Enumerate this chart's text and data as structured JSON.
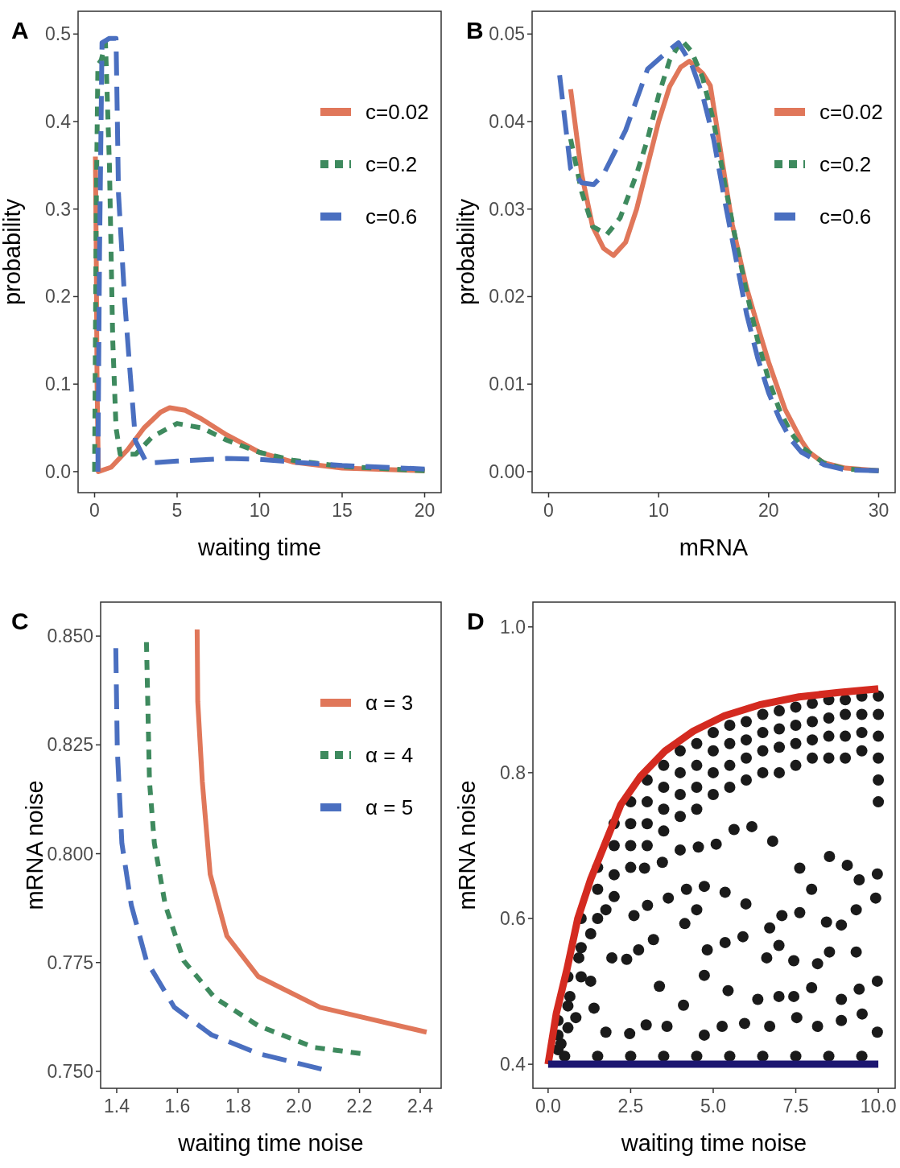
{
  "chart_data": [
    {
      "type": "line",
      "title": "A",
      "xlabel": "waiting time",
      "ylabel": "probability",
      "xlim": [
        -1,
        21
      ],
      "ylim": [
        -0.024,
        0.526
      ],
      "xticks": [
        0,
        5,
        10,
        15,
        20
      ],
      "yticks": [
        {
          "value": 0,
          "label": "0.0"
        },
        0.1,
        0.2,
        0.3,
        0.4,
        0.5
      ],
      "legend": "top right",
      "series": [
        {
          "name": "c=0.02",
          "color": "#e0775a",
          "line_style": "solid",
          "x": [
            0.05,
            0.1,
            0.15,
            0.23,
            1,
            2,
            3,
            4,
            4.55,
            5.5,
            6.5,
            8,
            10,
            12,
            15,
            20
          ],
          "values": [
            0.36,
            0.25,
            0.1,
            0.0,
            0.005,
            0.025,
            0.05,
            0.068,
            0.073,
            0.07,
            0.06,
            0.042,
            0.022,
            0.011,
            0.004,
            0.001
          ]
        },
        {
          "name": "c=0.2",
          "color": "#3e8a5e",
          "line_style": "dotted",
          "x": [
            0,
            0.1,
            0.2,
            0.4,
            0.66,
            0.9,
            1.1,
            1.3,
            1.55,
            2.5,
            3.5,
            5,
            6.5,
            8,
            10,
            12,
            15,
            20
          ],
          "values": [
            0,
            0.3,
            0.465,
            0.47,
            0.49,
            0.35,
            0.15,
            0.05,
            0.02,
            0.02,
            0.04,
            0.055,
            0.05,
            0.036,
            0.022,
            0.013,
            0.006,
            0.001
          ]
        },
        {
          "name": "c=0.6",
          "color": "#4a6fc0",
          "line_style": "dashed",
          "x": [
            0.2,
            0.3,
            0.45,
            0.9,
            1.3,
            1.45,
            1.83,
            2.11,
            2.48,
            3.1,
            3.5,
            5,
            8,
            10,
            12,
            15,
            20
          ],
          "values": [
            0,
            0.25,
            0.49,
            0.495,
            0.495,
            0.317,
            0.194,
            0.123,
            0.035,
            0.012,
            0.01,
            0.012,
            0.015,
            0.014,
            0.011,
            0.007,
            0.003
          ]
        }
      ]
    },
    {
      "type": "line",
      "title": "B",
      "xlabel": "mRNA",
      "ylabel": "probability",
      "xlim": [
        -1.5,
        31.5
      ],
      "ylim": [
        -0.0024,
        0.0526
      ],
      "xticks": [
        0,
        10,
        20,
        30
      ],
      "yticks": [
        {
          "value": 0,
          "label": "0.00"
        },
        {
          "value": 0.01,
          "label": "0.01"
        },
        {
          "value": 0.02,
          "label": "0.02"
        },
        {
          "value": 0.03,
          "label": "0.03"
        },
        {
          "value": 0.04,
          "label": "0.04"
        },
        {
          "value": 0.05,
          "label": "0.05"
        }
      ],
      "legend": "top right",
      "series": [
        {
          "name": "c=0.02",
          "color": "#e0775a",
          "line_style": "solid",
          "x": [
            2,
            3,
            4,
            5,
            5.9,
            7,
            8,
            9,
            10,
            11,
            12,
            12.8,
            14,
            14.7,
            16,
            16.7,
            18,
            19.2,
            20,
            21.5,
            23,
            23.7,
            25,
            27,
            30
          ],
          "values": [
            0.0437,
            0.034,
            0.028,
            0.0255,
            0.0247,
            0.0262,
            0.03,
            0.035,
            0.04,
            0.044,
            0.0462,
            0.0469,
            0.0455,
            0.0441,
            0.0337,
            0.0282,
            0.021,
            0.0158,
            0.0125,
            0.0071,
            0.0035,
            0.0022,
            0.001,
            0.0004,
            0.0001
          ]
        },
        {
          "name": "c=0.2",
          "color": "#3e8a5e",
          "line_style": "dotted",
          "x": [
            2,
            3,
            4,
            5.3,
            6.5,
            8,
            9,
            10,
            11,
            12.1,
            13,
            14,
            15,
            16,
            17,
            18,
            19,
            20,
            21,
            22,
            23,
            25,
            27,
            30
          ],
          "values": [
            0.038,
            0.032,
            0.028,
            0.0271,
            0.029,
            0.034,
            0.038,
            0.043,
            0.047,
            0.0493,
            0.048,
            0.045,
            0.04,
            0.033,
            0.0265,
            0.0205,
            0.015,
            0.0105,
            0.007,
            0.0045,
            0.0028,
            0.001,
            0.0003,
            0.0001
          ]
        },
        {
          "name": "c=0.6",
          "color": "#4a6fc0",
          "line_style": "dashed",
          "x": [
            1,
            2,
            3,
            4.1,
            5,
            6,
            7,
            8,
            9,
            10.8,
            11.8,
            13,
            14,
            15,
            16,
            17,
            18,
            19,
            20,
            21,
            22,
            23,
            25,
            27,
            30
          ],
          "values": [
            0.0453,
            0.0346,
            0.033,
            0.0328,
            0.034,
            0.0365,
            0.039,
            0.0425,
            0.046,
            0.048,
            0.049,
            0.0465,
            0.043,
            0.038,
            0.031,
            0.0245,
            0.018,
            0.013,
            0.009,
            0.006,
            0.0037,
            0.0022,
            0.0008,
            0.0002,
            0.0001
          ]
        }
      ]
    },
    {
      "type": "line",
      "title": "C",
      "xlabel": "waiting time noise",
      "ylabel": "mRNA noise",
      "xlim": [
        1.347,
        2.469
      ],
      "ylim": [
        0.7461,
        0.8578
      ],
      "xticks": [
        1.4,
        1.6,
        1.8,
        {
          "value": 2,
          "label": "2.0"
        },
        2.2,
        2.4
      ],
      "yticks": [
        {
          "value": 0.75,
          "label": "0.750"
        },
        {
          "value": 0.775,
          "label": "0.775"
        },
        {
          "value": 0.8,
          "label": "0.800"
        },
        {
          "value": 0.825,
          "label": "0.825"
        },
        {
          "value": 0.85,
          "label": "0.850"
        }
      ],
      "legend": "top right",
      "series": [
        {
          "name": "α = 3",
          "color": "#e0775a",
          "line_style": "solid",
          "x": [
            1.665,
            1.667,
            1.682,
            1.708,
            1.763,
            1.866,
            2.07,
            2.421
          ],
          "values": [
            0.8515,
            0.835,
            0.8166,
            0.7953,
            0.7811,
            0.7718,
            0.7647,
            0.759
          ]
        },
        {
          "name": "α = 4",
          "color": "#3e8a5e",
          "line_style": "dotted",
          "x": [
            1.498,
            1.508,
            1.524,
            1.56,
            1.621,
            1.723,
            1.866,
            2.05,
            2.203
          ],
          "values": [
            0.8486,
            0.8166,
            0.8024,
            0.7882,
            0.7754,
            0.7669,
            0.7605,
            0.7555,
            0.7541
          ]
        },
        {
          "name": "α = 5",
          "color": "#4a6fc0",
          "line_style": "dashed",
          "x": [
            1.397,
            1.402,
            1.417,
            1.448,
            1.498,
            1.59,
            1.712,
            1.866,
            2.075
          ],
          "values": [
            0.8472,
            0.8238,
            0.8024,
            0.7882,
            0.7754,
            0.7647,
            0.7584,
            0.7541,
            0.7505
          ]
        }
      ]
    },
    {
      "type": "scatter",
      "title": "D",
      "xlabel": "waiting time noise",
      "ylabel": "mRNA noise",
      "xlim": [
        -0.46,
        10.51
      ],
      "ylim": [
        0.367,
        1.034
      ],
      "xticks": [
        {
          "value": 0,
          "label": "0.0"
        },
        2.5,
        {
          "value": 5,
          "label": "5.0"
        },
        7.5,
        {
          "value": 10,
          "label": "10.0"
        }
      ],
      "yticks": [
        0.4,
        0.6,
        0.8,
        {
          "value": 1,
          "label": "1.0"
        }
      ],
      "series": [
        {
          "marker": "circle",
          "color": "#1a1a1a",
          "x": [
            0.3,
            0.3,
            0.3,
            0.6,
            0.6,
            0.6,
            1,
            1,
            1,
            1.5,
            1.5,
            1.5,
            2,
            2,
            2,
            2,
            2.5,
            2.5,
            2.5,
            2.5,
            3,
            3,
            3,
            3,
            3.5,
            3.5,
            3.5,
            3.5,
            4,
            4,
            4,
            4,
            4.5,
            4.5,
            4.5,
            4.5,
            5,
            5,
            5,
            5,
            5.5,
            5.5,
            5.5,
            5.5,
            6,
            6,
            6,
            6,
            6.5,
            6.5,
            6.5,
            6.5,
            7,
            7,
            7,
            7,
            7.5,
            7.5,
            7.5,
            7.5,
            8,
            8,
            8,
            8,
            8.5,
            8.5,
            8.5,
            8.5,
            9,
            9,
            9,
            9,
            9.5,
            9.5,
            9.5,
            9.5,
            10,
            10,
            10,
            10,
            10,
            10,
            4.14,
            4.5,
            3.37,
            1.39,
            0.84,
            1.75,
            2.47,
            2.97,
            3.6,
            4.1,
            4.73,
            5.27,
            5.95,
            6.71,
            7.53,
            8.16,
            8.88,
            9.51,
            9.97,
            9.97,
            9.42,
            8.88,
            7.98,
            7.44,
            6.99,
            6.35,
            5.45,
            4.73,
            4.82,
            5.36,
            5.9,
            6.62,
            6.99,
            7.44,
            8.16,
            8.52,
            9.33,
            2.38,
            2.74,
            3.19,
            1.93,
            1.29,
            0.66,
            0.39,
            2.6,
            3.01,
            3.64,
            4.19,
            4.73,
            5.36,
            5.99,
            6.71,
            7.08,
            7.62,
            7.98,
            8.43,
            8.88,
            9.33,
            9.92,
            9.97,
            9.42,
            9.06,
            8.52,
            7.62,
            6.8,
            6.17,
            5.63,
            5.09,
            4.55,
            4,
            3.46,
            2.92,
            1.75,
            1.29,
            0.93,
            0.5,
            1.5,
            2.5,
            3.5,
            4.5,
            5.5,
            6.5,
            7.5,
            8.5,
            9.5
          ],
          "values": [
            0.46,
            0.44,
            0.42,
            0.52,
            0.48,
            0.45,
            0.6,
            0.56,
            0.52,
            0.67,
            0.64,
            0.6,
            0.73,
            0.7,
            0.66,
            0.63,
            0.76,
            0.73,
            0.7,
            0.67,
            0.79,
            0.76,
            0.73,
            0.7,
            0.81,
            0.78,
            0.75,
            0.72,
            0.83,
            0.8,
            0.77,
            0.74,
            0.84,
            0.81,
            0.78,
            0.75,
            0.855,
            0.83,
            0.8,
            0.77,
            0.865,
            0.84,
            0.81,
            0.78,
            0.87,
            0.845,
            0.82,
            0.79,
            0.88,
            0.855,
            0.83,
            0.8,
            0.885,
            0.86,
            0.835,
            0.8,
            0.89,
            0.865,
            0.84,
            0.81,
            0.895,
            0.87,
            0.845,
            0.82,
            0.9,
            0.875,
            0.85,
            0.82,
            0.9,
            0.88,
            0.85,
            0.82,
            0.905,
            0.88,
            0.855,
            0.83,
            0.905,
            0.88,
            0.85,
            0.82,
            0.79,
            0.76,
            0.593,
            0.612,
            0.507,
            0.477,
            0.464,
            0.444,
            0.442,
            0.454,
            0.452,
            0.481,
            0.44,
            0.452,
            0.456,
            0.452,
            0.464,
            0.452,
            0.46,
            0.469,
            0.444,
            0.514,
            0.503,
            0.489,
            0.505,
            0.493,
            0.493,
            0.489,
            0.501,
            0.522,
            0.557,
            0.567,
            0.575,
            0.546,
            0.563,
            0.542,
            0.538,
            0.554,
            0.554,
            0.544,
            0.557,
            0.571,
            0.546,
            0.514,
            0.493,
            0.428,
            0.604,
            0.618,
            0.628,
            0.64,
            0.644,
            0.636,
            0.62,
            0.587,
            0.604,
            0.608,
            0.64,
            0.595,
            0.591,
            0.612,
            0.628,
            0.661,
            0.653,
            0.673,
            0.685,
            0.669,
            0.706,
            0.726,
            0.722,
            0.702,
            0.698,
            0.694,
            0.677,
            0.669,
            0.612,
            0.579,
            0.546,
            0.411,
            0.411,
            0.411,
            0.411,
            0.411,
            0.411,
            0.411,
            0.411,
            0.411,
            0.411
          ]
        },
        {
          "type": "line",
          "color": "#d42a20",
          "line_style": "solid",
          "x": [
            0,
            0.25,
            0.57,
            0.9,
            1.29,
            1.7,
            2.2,
            2.8,
            3.55,
            4.4,
            5.34,
            6.4,
            7.6,
            8.8,
            10
          ],
          "values": [
            0.4,
            0.47,
            0.53,
            0.6,
            0.654,
            0.7,
            0.756,
            0.795,
            0.83,
            0.857,
            0.878,
            0.893,
            0.904,
            0.91,
            0.915
          ]
        },
        {
          "type": "line",
          "color": "#1c1670",
          "line_style": "solid",
          "x": [
            0,
            10
          ],
          "values": [
            0.4,
            0.4
          ]
        }
      ]
    }
  ]
}
